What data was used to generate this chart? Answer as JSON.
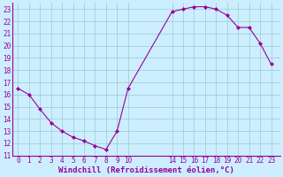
{
  "x": [
    0,
    1,
    2,
    3,
    4,
    5,
    6,
    7,
    8,
    9,
    10,
    14,
    15,
    16,
    17,
    18,
    19,
    20,
    21,
    22,
    23
  ],
  "y": [
    16.5,
    16.0,
    14.8,
    13.7,
    13.0,
    12.5,
    12.2,
    11.8,
    11.5,
    13.0,
    16.5,
    22.8,
    23.0,
    23.2,
    23.2,
    23.0,
    22.5,
    21.5,
    21.5,
    20.2,
    18.5
  ],
  "line_color": "#990099",
  "marker_color": "#990099",
  "bg_color": "#cceeff",
  "grid_color": "#99cccc",
  "xlabel": "Windchill (Refroidissement éolien,°C)",
  "xlabel_color": "#990099",
  "ylim": [
    11,
    23.5
  ],
  "xlim": [
    -0.5,
    23.8
  ],
  "yticks": [
    11,
    12,
    13,
    14,
    15,
    16,
    17,
    18,
    19,
    20,
    21,
    22,
    23
  ],
  "xticks": [
    0,
    1,
    2,
    3,
    4,
    5,
    6,
    7,
    8,
    9,
    10,
    14,
    15,
    16,
    17,
    18,
    19,
    20,
    21,
    22,
    23
  ],
  "tick_label_fontsize": 5.5,
  "xlabel_fontsize": 6.5
}
